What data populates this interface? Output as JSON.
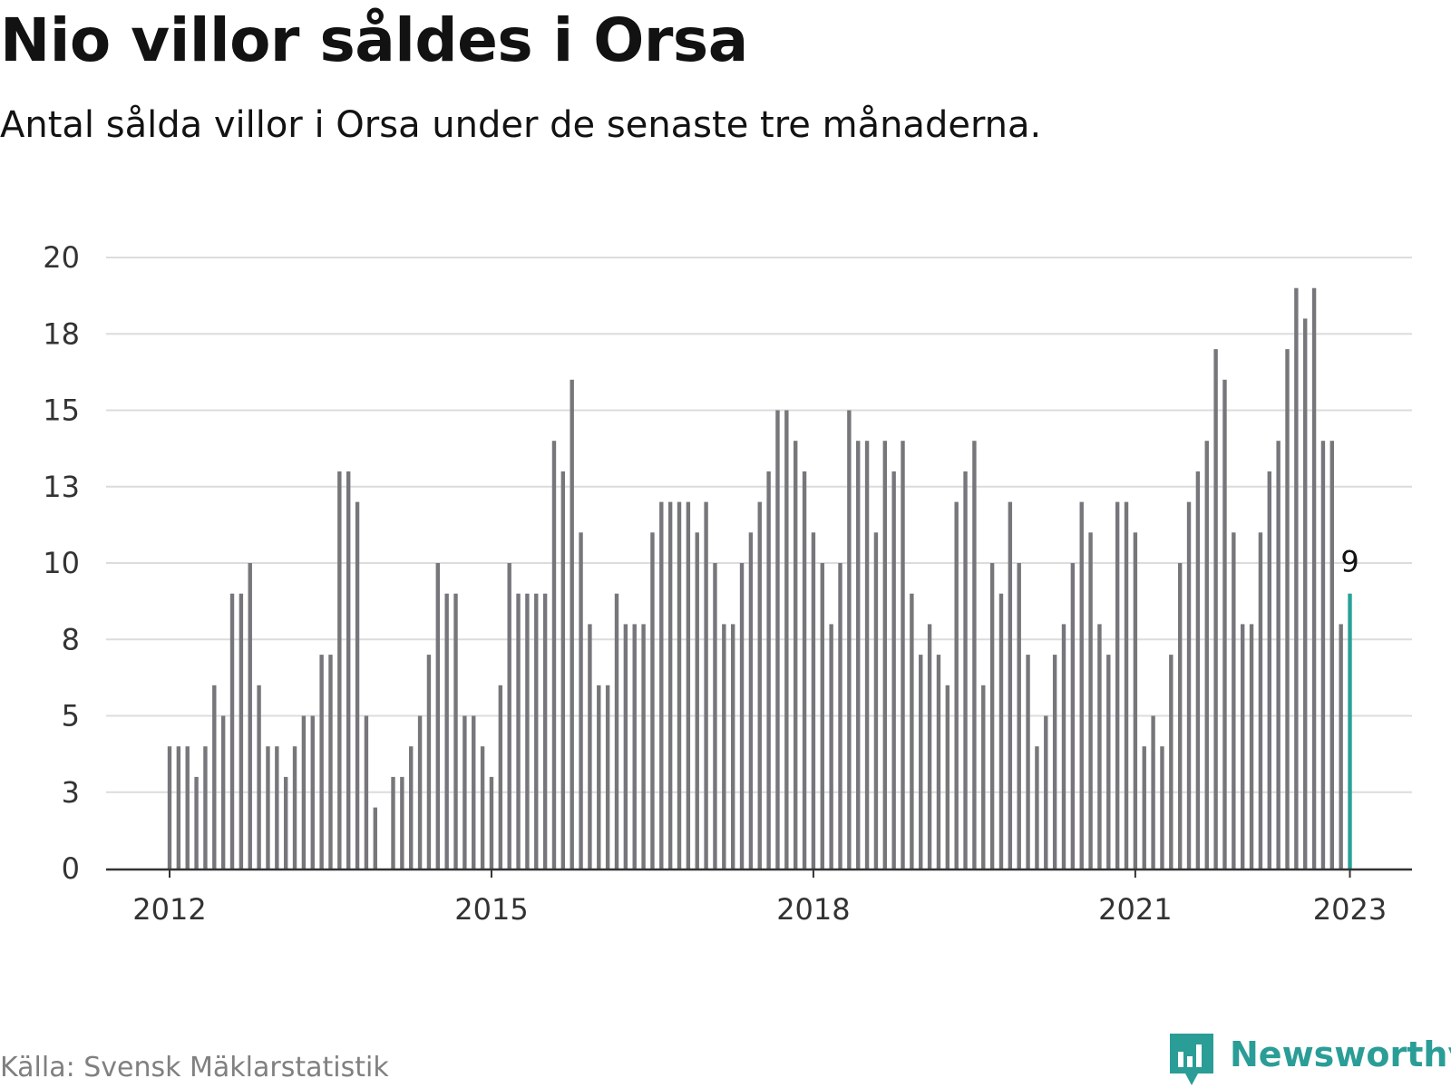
{
  "title": "Nio villor såldes i Orsa",
  "subtitle": "Antal sålda villor i Orsa under de senaste tre månaderna.",
  "source": "Källa: Svensk Mäklarstatistik",
  "brand": {
    "name": "Newsworthy",
    "color": "#2a9d97",
    "icon": "bar-chart-speech-bubble-icon"
  },
  "chart_data": {
    "type": "bar",
    "x_start": "2012-01",
    "x_end": "2023-01",
    "x_ticks": [
      "2012",
      "2015",
      "2018",
      "2021",
      "2023"
    ],
    "y_ticks": [
      "0",
      "3",
      "5",
      "8",
      "10",
      "13",
      "15",
      "18",
      "20"
    ],
    "ylim": [
      0,
      20
    ],
    "grid": true,
    "bar_color": "#77767b",
    "highlight_color": "#2aa198",
    "highlight_label": "9",
    "values": [
      4,
      4,
      4,
      3,
      4,
      6,
      5,
      9,
      9,
      10,
      6,
      4,
      4,
      3,
      4,
      5,
      5,
      7,
      7,
      13,
      13,
      12,
      5,
      2,
      0,
      3,
      3,
      4,
      5,
      7,
      10,
      9,
      9,
      5,
      5,
      4,
      3,
      6,
      10,
      9,
      9,
      9,
      9,
      14,
      13,
      16,
      11,
      8,
      6,
      6,
      9,
      8,
      8,
      8,
      11,
      12,
      12,
      12,
      12,
      11,
      12,
      10,
      8,
      8,
      10,
      11,
      12,
      13,
      15,
      15,
      14,
      13,
      11,
      10,
      8,
      10,
      15,
      14,
      14,
      11,
      14,
      13,
      14,
      9,
      7,
      8,
      7,
      6,
      12,
      13,
      14,
      6,
      10,
      9,
      12,
      10,
      7,
      4,
      5,
      7,
      8,
      10,
      12,
      11,
      8,
      7,
      12,
      12,
      11,
      4,
      5,
      4,
      7,
      10,
      12,
      13,
      14,
      17,
      16,
      11,
      8,
      8,
      11,
      13,
      14,
      17,
      19,
      18,
      19,
      14,
      14,
      8,
      9
    ]
  }
}
